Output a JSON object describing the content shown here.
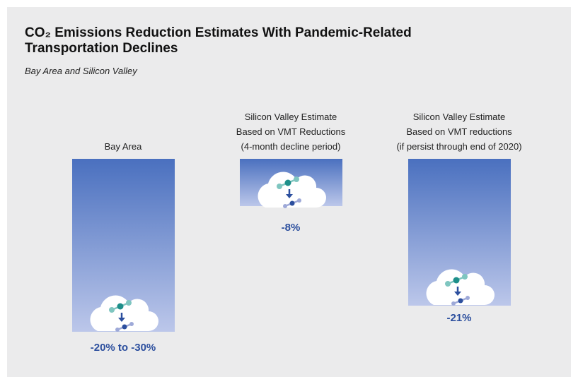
{
  "title_lines": [
    "CO₂ Emissions Reduction Estimates With Pandemic-Related",
    "Transportation Declines"
  ],
  "subtitle": "Bay Area and Silicon Valley",
  "panels": [
    {
      "heading_lines": [
        "Bay Area"
      ],
      "label": "-20% to -30%"
    },
    {
      "heading_lines": [
        "Silicon Valley Estimate",
        "Based on VMT Reductions",
        "(4-month decline period)"
      ],
      "label": "-8%"
    },
    {
      "heading_lines": [
        "Silicon Valley Estimate",
        "Based on VMT reductions",
        "(if persist through end of 2020)"
      ],
      "label": "-21%"
    }
  ]
}
